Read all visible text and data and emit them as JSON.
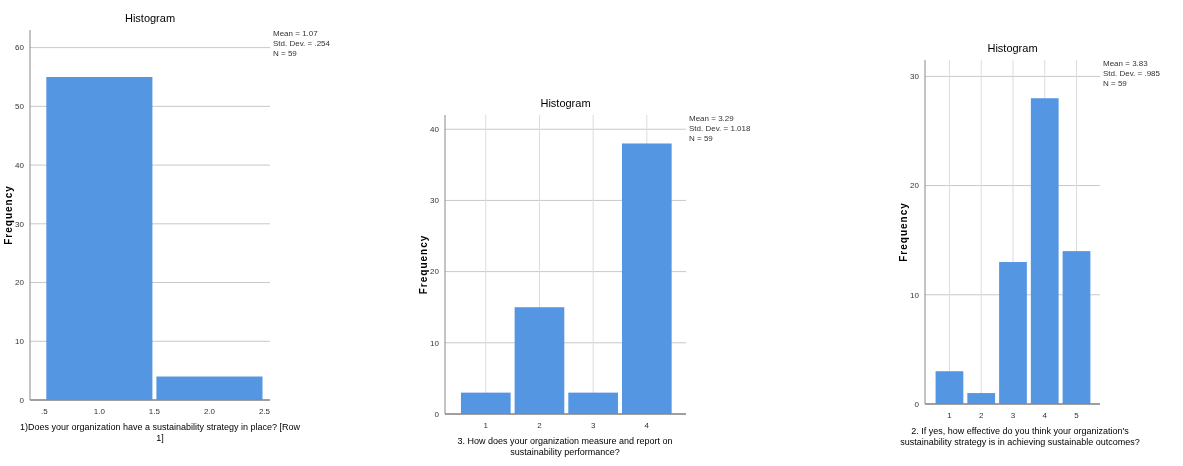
{
  "chart_data": [
    {
      "type": "histogram",
      "title": "Histogram",
      "xlabel": "1)Does your organization have a sustainability strategy in place? [Row 1]",
      "ylabel": "Frequency",
      "bins": [
        0.5,
        1.5,
        2.5
      ],
      "values": [
        55,
        4
      ],
      "color": "#5596e3",
      "xlim": [
        0.37,
        2.55
      ],
      "xticks": [
        {
          "value": 0.5,
          "label": ".5"
        },
        {
          "value": 1,
          "label": "1.0"
        },
        {
          "value": 1.5,
          "label": "1.5"
        },
        {
          "value": 2,
          "label": "2.0"
        },
        {
          "value": 2.5,
          "label": "2.5"
        }
      ],
      "ylim": [
        0,
        63
      ],
      "yticks": [
        0,
        10,
        20,
        30,
        40,
        50,
        60
      ],
      "grid": "y",
      "annotations": [
        "Mean = 1.07",
        "Std. Dev. = .254",
        "N = 59"
      ]
    },
    {
      "type": "histogram",
      "title": "Histogram",
      "xlabel": "3. How does your organization measure and report on sustainability performance?",
      "ylabel": "Frequency",
      "bins": [
        0.5,
        1.5,
        2.5,
        3.5,
        4.5
      ],
      "values": [
        3,
        15,
        3,
        38
      ],
      "color": "#5596e3",
      "xlim": [
        0.24,
        4.73
      ],
      "xticks": [
        1,
        2,
        3,
        4
      ],
      "ylim": [
        0,
        42
      ],
      "yticks": [
        0,
        10,
        20,
        30,
        40
      ],
      "grid": true,
      "annotations": [
        "Mean = 3.29",
        "Std. Dev. = 1.018",
        "N = 59"
      ]
    },
    {
      "type": "histogram",
      "title": "Histogram",
      "xlabel": "2. If yes, how effective do you think your organization's sustainability strategy is in achieving sustainable outcomes?",
      "ylabel": "Frequency",
      "bins": [
        0.5,
        1.5,
        2.5,
        3.5,
        4.5,
        5.5
      ],
      "values": [
        3,
        1,
        13,
        28,
        14
      ],
      "color": "#5596e3",
      "xlim": [
        0.23,
        5.74
      ],
      "xticks": [
        1,
        2,
        3,
        4,
        5
      ],
      "ylim": [
        0,
        31.5
      ],
      "yticks": [
        0,
        10,
        20,
        30
      ],
      "grid": true,
      "annotations": [
        "Mean = 3.83",
        "Std. Dev. = .985",
        "N = 59"
      ]
    }
  ]
}
